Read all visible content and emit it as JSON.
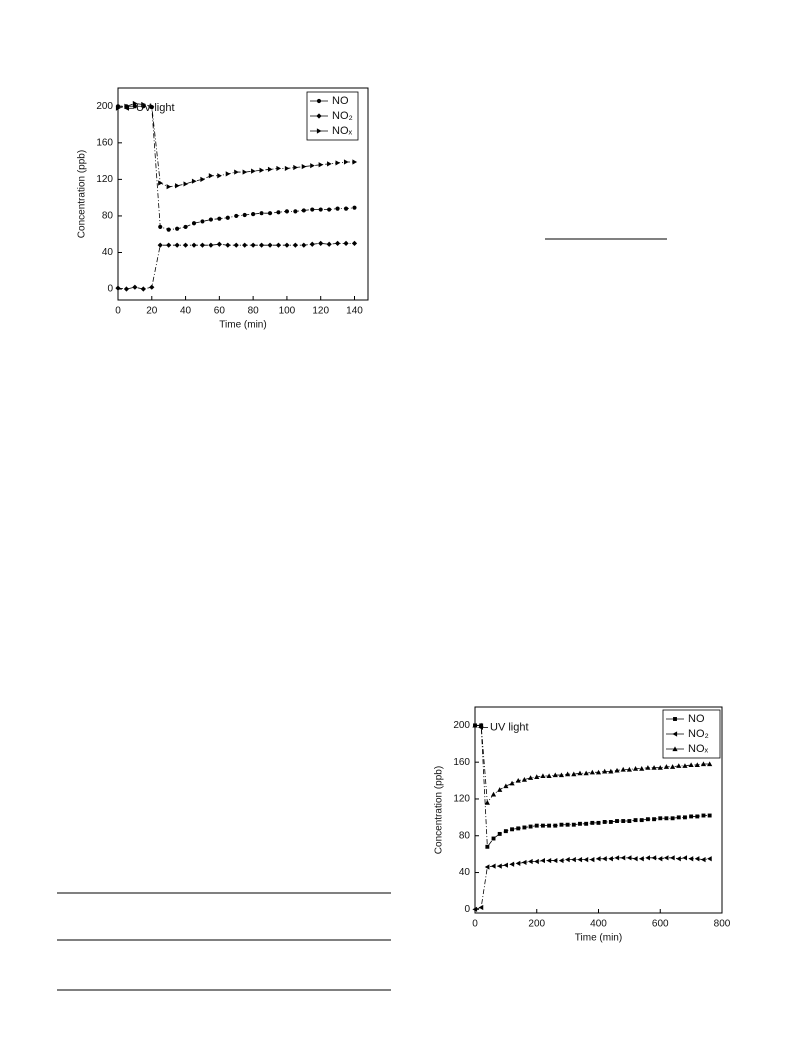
{
  "chart_data": [
    {
      "type": "line",
      "xlabel": "Time (min)",
      "ylabel": "Concentration (ppb)",
      "annotation": "UV light",
      "x": [
        0,
        5,
        10,
        15,
        20,
        25,
        30,
        35,
        40,
        45,
        50,
        55,
        60,
        65,
        70,
        75,
        80,
        85,
        90,
        95,
        100,
        105,
        110,
        115,
        120,
        125,
        130,
        135,
        140
      ],
      "xlim": [
        0,
        148
      ],
      "xticks": [
        0,
        20,
        40,
        60,
        80,
        100,
        120,
        140
      ],
      "ylim": [
        -12,
        220
      ],
      "yticks": [
        0,
        40,
        80,
        120,
        160,
        200
      ],
      "series": [
        {
          "name": "NO",
          "color": "#000000",
          "marker": "circle",
          "values": [
            200,
            200,
            200,
            200,
            199,
            68,
            65,
            66,
            68,
            72,
            74,
            76,
            77,
            78,
            80,
            81,
            82,
            83,
            83,
            84,
            85,
            85,
            86,
            87,
            87,
            87,
            88,
            88,
            89
          ]
        },
        {
          "name": "NO₂",
          "color": "#000000",
          "marker": "diamond",
          "values": [
            1,
            0,
            2,
            0,
            2,
            48,
            48,
            48,
            48,
            48,
            48,
            48,
            49,
            48,
            48,
            48,
            48,
            48,
            48,
            48,
            48,
            48,
            48,
            49,
            50,
            49,
            50,
            50,
            50
          ]
        },
        {
          "name": "NOₓ",
          "color": "#000000",
          "marker": "triangle-right",
          "values": [
            198,
            200,
            203,
            202,
            200,
            116,
            112,
            113,
            115,
            118,
            120,
            124,
            124,
            126,
            128,
            128,
            129,
            130,
            131,
            132,
            132,
            133,
            134,
            135,
            136,
            137,
            138,
            139,
            139
          ]
        }
      ]
    },
    {
      "type": "line",
      "xlabel": "Time (min)",
      "ylabel": "Concentration (ppb)",
      "annotation": "UV light",
      "x": [
        0,
        20,
        40,
        60,
        80,
        100,
        120,
        140,
        160,
        180,
        200,
        220,
        240,
        260,
        280,
        300,
        320,
        340,
        360,
        380,
        400,
        420,
        440,
        460,
        480,
        500,
        520,
        540,
        560,
        580,
        600,
        620,
        640,
        660,
        680,
        700,
        720,
        740,
        760
      ],
      "xlim": [
        0,
        800
      ],
      "xticks": [
        0,
        200,
        400,
        600,
        800
      ],
      "ylim": [
        -4,
        220
      ],
      "yticks": [
        0,
        40,
        80,
        120,
        160,
        200
      ],
      "series": [
        {
          "name": "NO",
          "color": "#000000",
          "marker": "square",
          "values": [
            200,
            200,
            68,
            77,
            82,
            85,
            87,
            88,
            89,
            90,
            91,
            91,
            91,
            91,
            92,
            92,
            92,
            93,
            93,
            94,
            94,
            95,
            95,
            96,
            96,
            96,
            97,
            97,
            98,
            98,
            99,
            99,
            99,
            100,
            100,
            101,
            101,
            102,
            102
          ]
        },
        {
          "name": "NO₂",
          "color": "#000000",
          "marker": "triangle-left",
          "values": [
            0,
            2,
            46,
            47,
            47,
            48,
            49,
            50,
            51,
            52,
            52,
            53,
            53,
            53,
            53,
            54,
            54,
            54,
            54,
            54,
            55,
            55,
            55,
            56,
            56,
            56,
            55,
            55,
            56,
            56,
            55,
            56,
            56,
            55,
            56,
            55,
            55,
            54,
            55
          ]
        },
        {
          "name": "NOₓ",
          "color": "#000000",
          "marker": "triangle-up",
          "values": [
            200,
            200,
            116,
            125,
            130,
            134,
            137,
            140,
            141,
            143,
            144,
            145,
            145,
            146,
            146,
            147,
            147,
            148,
            148,
            149,
            149,
            150,
            150,
            151,
            152,
            152,
            153,
            153,
            154,
            154,
            154,
            155,
            155,
            156,
            156,
            157,
            157,
            158,
            158
          ]
        }
      ]
    }
  ]
}
